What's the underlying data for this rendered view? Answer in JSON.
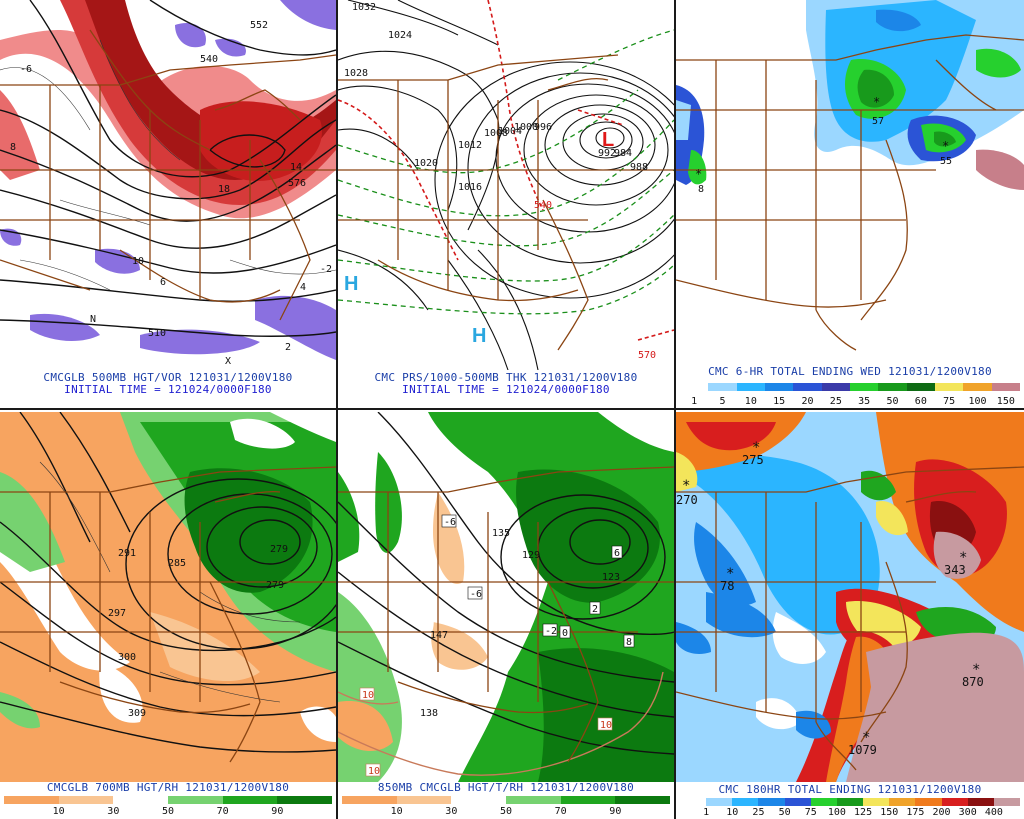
{
  "panels": [
    {
      "id": "p1",
      "caption": "CMCGLB 500MB HGT/VOR 121031/1200V180",
      "subcaption": "INITIAL TIME = 121024/0000F180",
      "contour_labels": [
        "552",
        "540",
        "576",
        "510",
        "10",
        "18",
        "14",
        "8",
        "6",
        "4",
        "-2",
        "-6",
        "N",
        "X",
        "2"
      ]
    },
    {
      "id": "p2",
      "caption": "CMC PRS/1000-500MB THK 121031/1200V180",
      "subcaption": "INITIAL TIME = 121024/0000F180",
      "contour_labels": [
        "1032",
        "1028",
        "1024",
        "1020",
        "1016",
        "1012",
        "1008",
        "1004",
        "1000",
        "996",
        "992",
        "988",
        "984",
        "570",
        "540"
      ],
      "pressure_centers": [
        "L",
        "H",
        "H"
      ]
    },
    {
      "id": "p3",
      "caption": "CMC 6-HR TOTAL ENDING WED 121031/1200V180",
      "scale_values": [
        "1",
        "5",
        "10",
        "15",
        "20",
        "25",
        "35",
        "50",
        "60",
        "75",
        "100",
        "150"
      ],
      "scale_colors": [
        "#ffffff",
        "#9bd7ff",
        "#2bb5ff",
        "#1c86e8",
        "#2b54d6",
        "#3a3aa8",
        "#26d02e",
        "#189a1c",
        "#0e6b14",
        "#f3e55b",
        "#f0a32a",
        "#c77f8a"
      ],
      "point_labels": [
        "57",
        "55",
        "8"
      ]
    },
    {
      "id": "p4",
      "caption": "CMCGLB 700MB HGT/RH 121031/1200V180",
      "scale_values": [
        "10",
        "30",
        "50",
        "70",
        "90"
      ],
      "scale_colors": [
        "#f7a460",
        "#f9c592",
        "#ffffff",
        "#76d270",
        "#1fa61f",
        "#0c7a10"
      ],
      "contour_labels": [
        "291",
        "285",
        "279",
        "279",
        "297",
        "300",
        "309"
      ]
    },
    {
      "id": "p5",
      "caption": "850MB CMCGLB HGT/T/RH 121031/1200V180",
      "scale_values": [
        "10",
        "30",
        "50",
        "70",
        "90"
      ],
      "scale_colors": [
        "#f7a460",
        "#f9c592",
        "#ffffff",
        "#76d270",
        "#1fa61f",
        "#0c7a10"
      ],
      "contour_labels": [
        "-6",
        "-6",
        "-2",
        "0",
        "2",
        "6",
        "8",
        "10",
        "10",
        "10",
        "147",
        "138",
        "129",
        "123",
        "135"
      ]
    },
    {
      "id": "p6",
      "caption": "CMC 180HR TOTAL ENDING 121031/1200V180",
      "scale_values": [
        "1",
        "10",
        "25",
        "50",
        "75",
        "100",
        "125",
        "150",
        "175",
        "200",
        "300",
        "400"
      ],
      "scale_colors": [
        "#ffffff",
        "#9bd7ff",
        "#2bb5ff",
        "#1c86e8",
        "#2b54d6",
        "#26d02e",
        "#189a1c",
        "#f3e55b",
        "#f0a32a",
        "#f07a1c",
        "#d81e1e",
        "#8a1010",
        "#c79aa0"
      ],
      "point_labels": [
        "275",
        "270",
        "78",
        "343",
        "870",
        "1079"
      ]
    }
  ],
  "colors": {
    "border": "#8b4513",
    "contour": "#111111",
    "caption": "#1a3ea8"
  }
}
